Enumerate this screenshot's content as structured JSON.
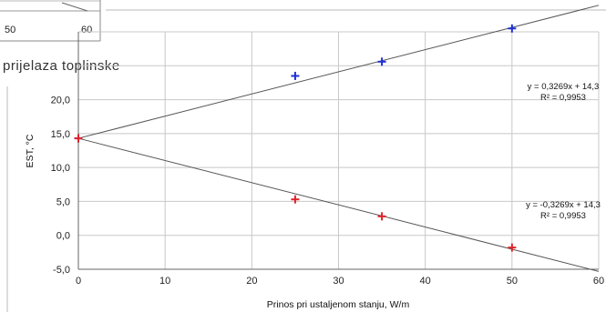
{
  "inset": {
    "tick_left": "50",
    "tick_right": "60",
    "caption": "prijelaza toplinske"
  },
  "chart_data": {
    "type": "scatter",
    "xlabel": "Prinos pri ustaljenom stanju, W/m",
    "ylabel": "EST, °C",
    "xlim": [
      0,
      60
    ],
    "ylim": [
      -5,
      30
    ],
    "x_ticks": [
      "0",
      "10",
      "20",
      "30",
      "40",
      "50",
      "60"
    ],
    "y_ticks": [
      "-5,0",
      "0,0",
      "5,0",
      "10,0",
      "15,0",
      "20,0"
    ],
    "grid": true,
    "series": [
      {
        "color": "#1f2fd6",
        "marker": "+",
        "points": [
          {
            "x": 0,
            "y": 14.3
          },
          {
            "x": 25,
            "y": 23.5
          },
          {
            "x": 35,
            "y": 25.6
          },
          {
            "x": 50,
            "y": 30.5
          }
        ],
        "trendline": {
          "slope": 0.3269,
          "intercept": 14.3
        },
        "equation": "y = 0,3269x + 14,3",
        "r2": "R² = 0,9953"
      },
      {
        "color": "#e0222a",
        "marker": "+",
        "points": [
          {
            "x": 0,
            "y": 14.3
          },
          {
            "x": 25,
            "y": 5.3
          },
          {
            "x": 35,
            "y": 2.8
          },
          {
            "x": 50,
            "y": -1.8
          }
        ],
        "trendline": {
          "slope": -0.3269,
          "intercept": 14.3
        },
        "equation": "y = -0,3269x + 14,3",
        "r2": "R² = 0,9953"
      }
    ]
  }
}
